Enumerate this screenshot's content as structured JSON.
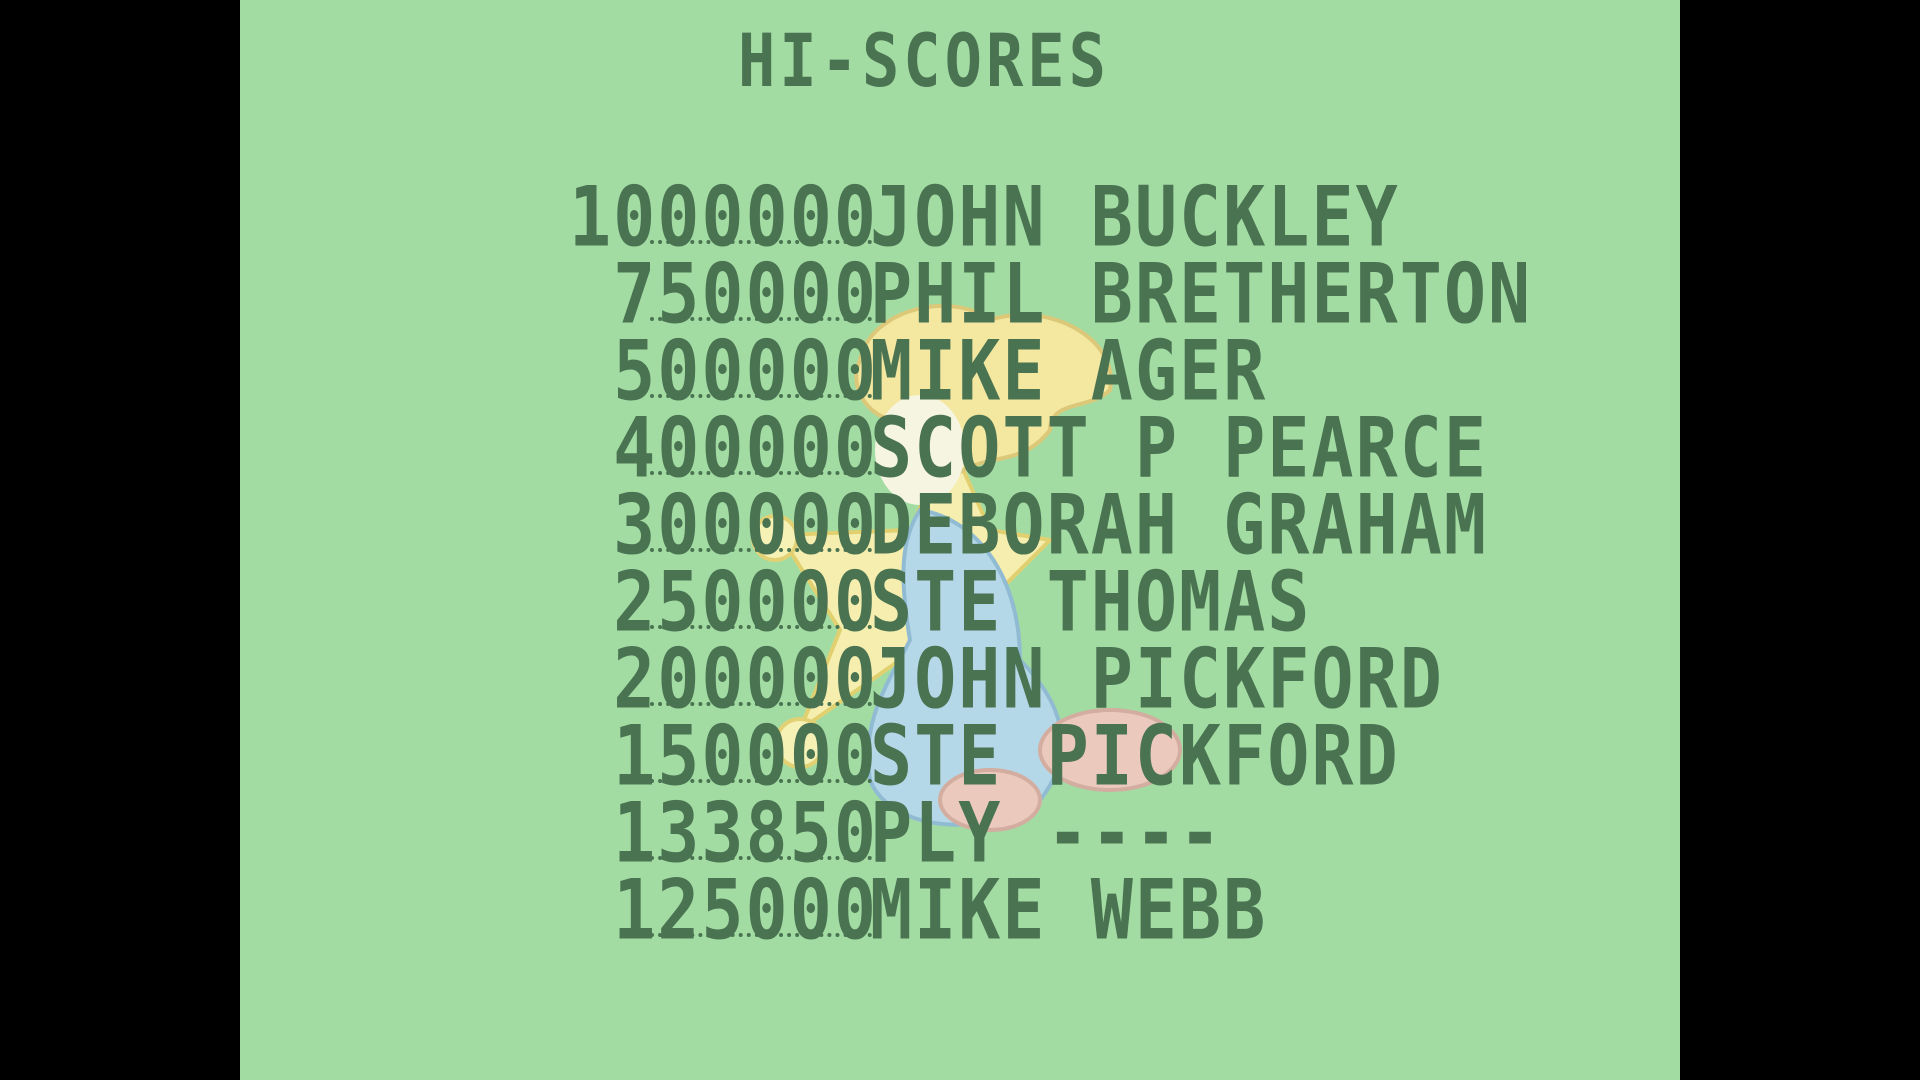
{
  "title": "HI-SCORES",
  "colors": {
    "background": "#a3dca3",
    "text": "#4a7352",
    "letterbox": "#000000"
  },
  "sprite": "jester-mascot",
  "scores": [
    {
      "score": "1000000",
      "name": "JOHN BUCKLEY"
    },
    {
      "score": "750000",
      "name": "PHIL BRETHERTON"
    },
    {
      "score": "500000",
      "name": "MIKE AGER"
    },
    {
      "score": "400000",
      "name": "SCOTT P PEARCE"
    },
    {
      "score": "300000",
      "name": "DEBORAH GRAHAM"
    },
    {
      "score": "250000",
      "name": "STE THOMAS"
    },
    {
      "score": "200000",
      "name": "JOHN PICKFORD"
    },
    {
      "score": "150000",
      "name": "STE PICKFORD"
    },
    {
      "score": "133850",
      "name": "PLY ----"
    },
    {
      "score": "125000",
      "name": "MIKE WEBB"
    }
  ]
}
